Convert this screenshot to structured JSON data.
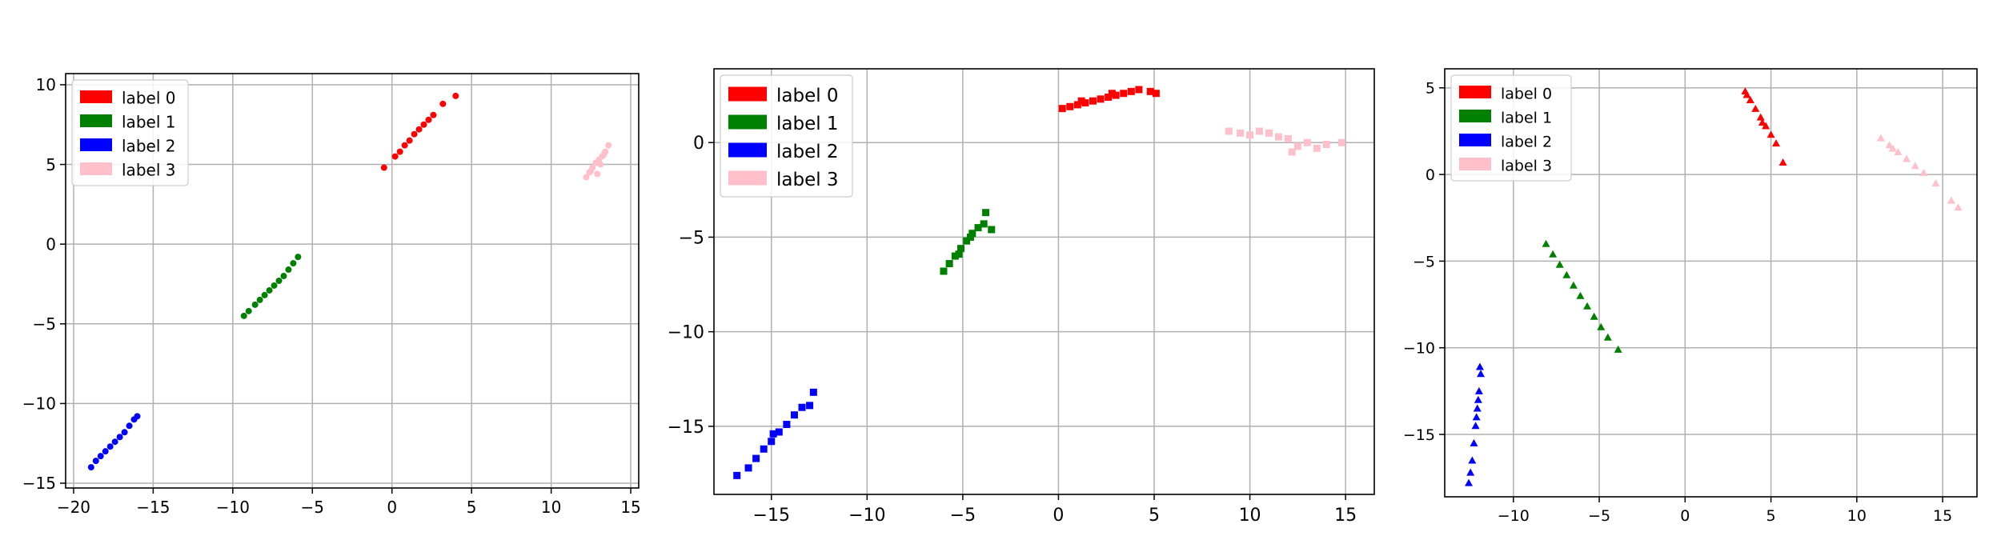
{
  "chart_data": [
    {
      "type": "scatter",
      "marker": "circle",
      "xlim": [
        -20.5,
        15.5
      ],
      "ylim": [
        -15.3,
        10.7
      ],
      "xticks": [
        -20,
        -15,
        -10,
        -5,
        0,
        5,
        10,
        15
      ],
      "yticks": [
        -15,
        -10,
        -5,
        0,
        5,
        10
      ],
      "grid": true,
      "legend_position": "upper-left",
      "series": [
        {
          "name": "label 0",
          "color": "#ff0000",
          "points": [
            [
              -0.5,
              4.8
            ],
            [
              0.2,
              5.5
            ],
            [
              0.5,
              5.8
            ],
            [
              0.8,
              6.2
            ],
            [
              1.1,
              6.5
            ],
            [
              1.4,
              6.9
            ],
            [
              1.7,
              7.2
            ],
            [
              2.0,
              7.5
            ],
            [
              2.3,
              7.8
            ],
            [
              2.6,
              8.1
            ],
            [
              3.2,
              8.8
            ],
            [
              4.0,
              9.3
            ]
          ]
        },
        {
          "name": "label 1",
          "color": "#008000",
          "points": [
            [
              -9.3,
              -4.5
            ],
            [
              -9.0,
              -4.2
            ],
            [
              -8.6,
              -3.8
            ],
            [
              -8.3,
              -3.5
            ],
            [
              -8.0,
              -3.2
            ],
            [
              -7.7,
              -2.9
            ],
            [
              -7.4,
              -2.6
            ],
            [
              -7.1,
              -2.3
            ],
            [
              -6.8,
              -2.0
            ],
            [
              -6.5,
              -1.6
            ],
            [
              -6.2,
              -1.2
            ],
            [
              -5.9,
              -0.8
            ]
          ]
        },
        {
          "name": "label 2",
          "color": "#0000ff",
          "points": [
            [
              -18.9,
              -14.0
            ],
            [
              -18.6,
              -13.6
            ],
            [
              -18.3,
              -13.3
            ],
            [
              -18.0,
              -13.0
            ],
            [
              -17.7,
              -12.7
            ],
            [
              -17.4,
              -12.4
            ],
            [
              -17.1,
              -12.1
            ],
            [
              -16.8,
              -11.8
            ],
            [
              -16.5,
              -11.4
            ],
            [
              -16.2,
              -11.0
            ],
            [
              -16.0,
              -10.8
            ]
          ]
        },
        {
          "name": "label 3",
          "color": "#ffc0cb",
          "points": [
            [
              12.2,
              4.2
            ],
            [
              12.4,
              4.5
            ],
            [
              12.6,
              4.8
            ],
            [
              12.8,
              5.1
            ],
            [
              13.0,
              5.3
            ],
            [
              13.2,
              5.5
            ],
            [
              13.4,
              5.8
            ],
            [
              13.6,
              6.2
            ],
            [
              12.5,
              4.6
            ],
            [
              13.1,
              5.0
            ],
            [
              13.3,
              5.6
            ],
            [
              12.9,
              4.4
            ]
          ]
        }
      ]
    },
    {
      "type": "scatter",
      "marker": "square",
      "xlim": [
        -18.0,
        16.5
      ],
      "ylim": [
        -18.6,
        3.9
      ],
      "xticks": [
        -15,
        -10,
        -5,
        0,
        5,
        10,
        15
      ],
      "yticks": [
        -15,
        -10,
        -5,
        0
      ],
      "grid": true,
      "legend_position": "upper-left",
      "series": [
        {
          "name": "label 0",
          "color": "#ff0000",
          "points": [
            [
              0.2,
              1.8
            ],
            [
              0.6,
              1.9
            ],
            [
              1.0,
              2.0
            ],
            [
              1.4,
              2.1
            ],
            [
              1.8,
              2.2
            ],
            [
              2.2,
              2.3
            ],
            [
              2.6,
              2.4
            ],
            [
              3.0,
              2.5
            ],
            [
              3.4,
              2.6
            ],
            [
              3.8,
              2.7
            ],
            [
              4.2,
              2.8
            ],
            [
              4.8,
              2.7
            ],
            [
              5.1,
              2.6
            ],
            [
              1.2,
              2.2
            ],
            [
              2.8,
              2.6
            ]
          ]
        },
        {
          "name": "label 1",
          "color": "#008000",
          "points": [
            [
              -6.0,
              -6.8
            ],
            [
              -5.7,
              -6.4
            ],
            [
              -5.4,
              -6.0
            ],
            [
              -5.1,
              -5.6
            ],
            [
              -4.8,
              -5.2
            ],
            [
              -4.5,
              -4.8
            ],
            [
              -4.2,
              -4.5
            ],
            [
              -3.9,
              -4.3
            ],
            [
              -3.5,
              -4.6
            ],
            [
              -3.8,
              -3.7
            ],
            [
              -4.6,
              -5.0
            ],
            [
              -5.2,
              -5.9
            ]
          ]
        },
        {
          "name": "label 2",
          "color": "#0000ff",
          "points": [
            [
              -16.8,
              -17.6
            ],
            [
              -16.2,
              -17.2
            ],
            [
              -15.8,
              -16.7
            ],
            [
              -15.4,
              -16.2
            ],
            [
              -15.0,
              -15.8
            ],
            [
              -14.6,
              -15.3
            ],
            [
              -14.2,
              -14.9
            ],
            [
              -13.8,
              -14.4
            ],
            [
              -13.4,
              -14.0
            ],
            [
              -13.0,
              -13.9
            ],
            [
              -12.8,
              -13.2
            ],
            [
              -14.9,
              -15.4
            ]
          ]
        },
        {
          "name": "label 3",
          "color": "#ffc0cb",
          "points": [
            [
              8.9,
              0.6
            ],
            [
              9.5,
              0.5
            ],
            [
              10.0,
              0.4
            ],
            [
              10.5,
              0.6
            ],
            [
              11.0,
              0.5
            ],
            [
              11.5,
              0.3
            ],
            [
              12.0,
              0.2
            ],
            [
              12.5,
              -0.2
            ],
            [
              13.0,
              0.0
            ],
            [
              13.5,
              -0.3
            ],
            [
              14.0,
              -0.1
            ],
            [
              14.8,
              0.0
            ],
            [
              12.2,
              -0.5
            ]
          ]
        }
      ]
    },
    {
      "type": "scatter",
      "marker": "triangle",
      "xlim": [
        -14.0,
        17.0
      ],
      "ylim": [
        -18.6,
        6.1
      ],
      "xticks": [
        -10,
        -5,
        0,
        5,
        10,
        15
      ],
      "yticks": [
        -15,
        -10,
        -5,
        0,
        5
      ],
      "grid": true,
      "legend_position": "upper-left",
      "series": [
        {
          "name": "label 0",
          "color": "#ff0000",
          "points": [
            [
              3.5,
              4.8
            ],
            [
              3.8,
              4.3
            ],
            [
              4.1,
              3.8
            ],
            [
              4.4,
              3.3
            ],
            [
              4.7,
              2.8
            ],
            [
              5.0,
              2.3
            ],
            [
              5.3,
              1.8
            ],
            [
              5.7,
              0.7
            ],
            [
              3.6,
              4.6
            ],
            [
              4.5,
              3.0
            ]
          ]
        },
        {
          "name": "label 1",
          "color": "#008000",
          "points": [
            [
              -8.1,
              -4.0
            ],
            [
              -7.7,
              -4.6
            ],
            [
              -7.3,
              -5.2
            ],
            [
              -6.9,
              -5.8
            ],
            [
              -6.5,
              -6.4
            ],
            [
              -6.1,
              -7.0
            ],
            [
              -5.7,
              -7.6
            ],
            [
              -5.3,
              -8.2
            ],
            [
              -4.9,
              -8.8
            ],
            [
              -4.5,
              -9.4
            ],
            [
              -3.9,
              -10.1
            ]
          ]
        },
        {
          "name": "label 2",
          "color": "#0000ff",
          "points": [
            [
              -12.6,
              -17.8
            ],
            [
              -12.4,
              -16.5
            ],
            [
              -12.3,
              -15.5
            ],
            [
              -12.2,
              -14.5
            ],
            [
              -12.1,
              -13.5
            ],
            [
              -12.0,
              -12.5
            ],
            [
              -11.9,
              -11.5
            ],
            [
              -11.95,
              -11.1
            ],
            [
              -12.5,
              -17.2
            ],
            [
              -12.15,
              -14.0
            ],
            [
              -12.05,
              -13.0
            ]
          ]
        },
        {
          "name": "label 3",
          "color": "#ffc0cb",
          "points": [
            [
              11.4,
              2.1
            ],
            [
              11.9,
              1.7
            ],
            [
              12.4,
              1.3
            ],
            [
              12.9,
              0.9
            ],
            [
              13.4,
              0.5
            ],
            [
              13.9,
              0.1
            ],
            [
              14.6,
              -0.5
            ],
            [
              15.5,
              -1.5
            ],
            [
              15.9,
              -1.9
            ],
            [
              12.1,
              1.5
            ]
          ]
        }
      ]
    }
  ]
}
